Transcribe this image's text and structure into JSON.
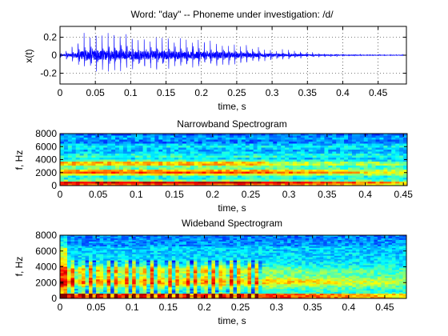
{
  "chart_data": [
    {
      "type": "line",
      "title": "Word: \"day\" --  Phoneme under investigation: /d/",
      "xlabel": "time, s",
      "ylabel": "x(t)",
      "xlim": [
        0,
        0.49
      ],
      "ylim": [
        -0.32,
        0.32
      ],
      "xticks": [
        "0",
        "0.05",
        "0.1",
        "0.15",
        "0.2",
        "0.25",
        "0.3",
        "0.35",
        "0.4",
        "0.45"
      ],
      "yticks": [
        "0.2",
        "0",
        "-0.2"
      ],
      "grid": "dotted",
      "series": [
        {
          "color": "#0000ff",
          "description_points": {
            "t": [
              0.0,
              0.02,
              0.03,
              0.04,
              0.07,
              0.1,
              0.15,
              0.2,
              0.25,
              0.3,
              0.35,
              0.4,
              0.45,
              0.49
            ],
            "envelope": [
              0.05,
              0.12,
              0.26,
              0.31,
              0.3,
              0.28,
              0.26,
              0.23,
              0.17,
              0.1,
              0.05,
              0.02,
              0.01,
              0.01
            ]
          }
        }
      ]
    },
    {
      "type": "heatmap",
      "title": "Narrowband Spectrogram",
      "xlabel": "time, s",
      "ylabel": "f, Hz",
      "xlim": [
        0,
        0.455
      ],
      "ylim": [
        0,
        8000
      ],
      "xticks": [
        "0",
        "0.05",
        "0.1",
        "0.15",
        "0.2",
        "0.25",
        "0.3",
        "0.35",
        "0.4",
        "0.45"
      ],
      "yticks": [
        "8000",
        "6000",
        "4000",
        "2000",
        "0"
      ],
      "colormap": "jet"
    },
    {
      "type": "heatmap",
      "title": "Wideband Spectrogram",
      "xlabel": "time, s",
      "ylabel": "f, Hz",
      "xlim": [
        0,
        0.48
      ],
      "ylim": [
        0,
        8000
      ],
      "xticks": [
        "0",
        "0.05",
        "0.1",
        "0.15",
        "0.2",
        "0.25",
        "0.3",
        "0.35",
        "0.4",
        "0.45"
      ],
      "yticks": [
        "8000",
        "6000",
        "4000",
        "2000",
        "0"
      ],
      "colormap": "jet"
    }
  ]
}
